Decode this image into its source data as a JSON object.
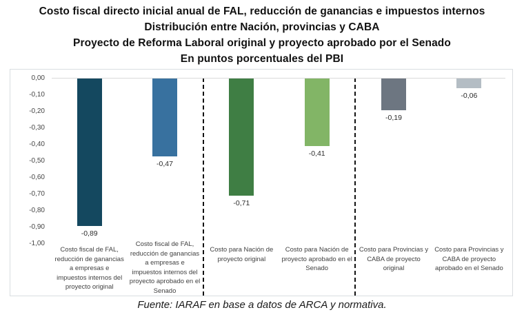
{
  "title": {
    "line1": "Costo fiscal directo inicial anual de FAL, reducción de ganancias e impuestos internos",
    "line2": "Distribución entre Nación, provincias y CABA",
    "line3": "Proyecto de Reforma Laboral original y proyecto aprobado por el Senado",
    "line4": "En puntos porcentuales del PBI"
  },
  "source": "Fuente: IARAF en base a datos de ARCA y normativa.",
  "chart_data": {
    "type": "bar",
    "title": "Costo fiscal directo inicial anual de FAL, reducción de ganancias e impuestos internos",
    "subtitle_lines": [
      "Distribución entre Nación, provincias y CABA",
      "Proyecto de Reforma Laboral original y proyecto aprobado por el Senado",
      "En puntos porcentuales del PBI"
    ],
    "xlabel": "",
    "ylabel": "",
    "ylim": [
      -1.0,
      0.0
    ],
    "ytick_labels": [
      "0,00",
      "-0,10",
      "-0,20",
      "-0,30",
      "-0,40",
      "-0,50",
      "-0,60",
      "-0,70",
      "-0,80",
      "-0,90",
      "-1,00"
    ],
    "grid": "zero-line-only",
    "legend": "none",
    "group_separator": "vertical-dashed-line",
    "categories": [
      "Costo fiscal de FAL, reducción de ganancias a empresas e impuestos internos del proyecto original",
      "Costo fiscal de FAL, reducción de ganancias a empresas e impuestos internos del proyecto aprobado en el Senado",
      "Costo para Nación de proyecto original",
      "Costo para Nación de proyecto aprobado en el Senado",
      "Costo para Provincias y CABA de proyecto original",
      "Costo para Provincias y CABA de proyecto aprobado en el Senado"
    ],
    "values": [
      -0.89,
      -0.47,
      -0.71,
      -0.41,
      -0.19,
      -0.06
    ],
    "bars": [
      {
        "category": "Costo fiscal de FAL, reducción de ganancias a empresas e impuestos internos del proyecto original",
        "value": -0.89,
        "label": "-0,89",
        "color": "#14485f",
        "group": 0
      },
      {
        "category": "Costo fiscal de FAL, reducción de ganancias a empresas e impuestos internos del proyecto aprobado en el Senado",
        "value": -0.47,
        "label": "-0,47",
        "color": "#38719f",
        "group": 0
      },
      {
        "category": "Costo para Nación de proyecto original",
        "value": -0.71,
        "label": "-0,71",
        "color": "#3f7e44",
        "group": 1
      },
      {
        "category": "Costo para Nación de proyecto aprobado en el Senado",
        "value": -0.41,
        "label": "-0,41",
        "color": "#82b566",
        "group": 1
      },
      {
        "category": "Costo para Provincias y CABA de proyecto original",
        "value": -0.19,
        "label": "-0,19",
        "color": "#6d7681",
        "group": 2
      },
      {
        "category": "Costo para Provincias y CABA de proyecto aprobado en el Senado",
        "value": -0.06,
        "label": "-0,06",
        "color": "#b4bdc4",
        "group": 2
      }
    ]
  }
}
